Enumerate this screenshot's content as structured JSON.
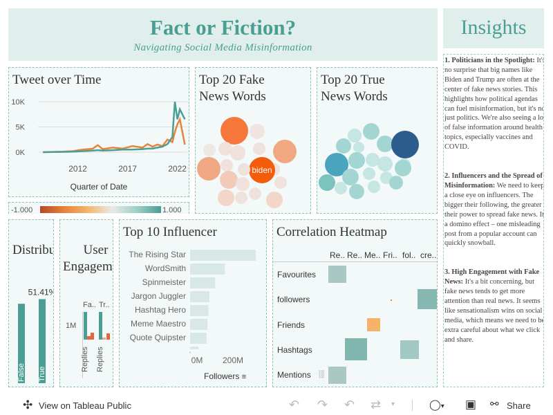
{
  "header": {
    "title": "Fact or Fiction?",
    "subtitle": "Navigating Social Media Misinformation"
  },
  "insights": {
    "title": "Insights",
    "items": [
      {
        "heading": "1. Politicians in the Spotlight:",
        "body": " It's no surprise that big names like Biden and Trump are often at the center of fake news stories. This highlights how political agendas can fuel misinformation, but it's not just politics. We're also seeing a lot of false information around health topics, especially vaccines and COVID."
      },
      {
        "heading": "2. Influencers and the Spread of Misinformation:",
        "body": " We need to keep a close eye on influencers. The bigger their following, the greater their power to spread fake news. It's a domino effect – one misleading post from a popular account can quickly snowball."
      },
      {
        "heading": "3. High Engagement with Fake News:",
        "body": " It's a bit concerning, but fake news tends to get more attention than real news. It seems like sensationalism wins on social media, which means we need to be extra careful about what we click and share."
      }
    ]
  },
  "tweets": {
    "title": "Tweet over Time",
    "xlabel": "Quarter of Date",
    "colors": {
      "fake": "#e8833a",
      "true": "#4a9e94"
    }
  },
  "chart_data": [
    {
      "type": "line",
      "title": "Tweet over Time",
      "xlabel": "Quarter of Date",
      "ylabel": "",
      "ylim": [
        0,
        10000
      ],
      "yticks": [
        "0K",
        "5K",
        "10K"
      ],
      "xticks": [
        "2012",
        "2017",
        "2022"
      ],
      "x": [
        2008.5,
        2009.5,
        2010.5,
        2011.5,
        2012.5,
        2013.5,
        2014,
        2014.5,
        2015.5,
        2016.5,
        2017.5,
        2018.5,
        2019,
        2019.5,
        2020,
        2020.5,
        2021,
        2021.5,
        2021.75,
        2022,
        2022.25,
        2022.5,
        2022.75
      ],
      "series": [
        {
          "name": "Fake",
          "values": [
            0,
            50,
            100,
            200,
            500,
            700,
            1400,
            600,
            900,
            700,
            1200,
            900,
            1600,
            1100,
            1500,
            1200,
            2500,
            2000,
            4000,
            5500,
            6500,
            4000,
            1500
          ]
        },
        {
          "name": "True",
          "values": [
            0,
            30,
            60,
            100,
            200,
            300,
            400,
            300,
            400,
            500,
            500,
            600,
            700,
            700,
            900,
            1100,
            1600,
            3000,
            10000,
            6500,
            8500,
            7500,
            6500
          ]
        }
      ]
    },
    {
      "type": "bar",
      "title": "Distribution",
      "categories": [
        "False",
        "True"
      ],
      "values": [
        48.59,
        51.41
      ],
      "data_labels": [
        "",
        "51.41%"
      ]
    },
    {
      "type": "bar",
      "title": "Top 10 Influencer",
      "categories": [
        "The Rising Star",
        "WordSmith",
        "Spinmeister",
        "Jargon Juggler",
        "Hashtag Hero",
        "Meme Maestro",
        "Quote Quipster"
      ],
      "values": [
        340,
        180,
        130,
        100,
        95,
        90,
        85
      ],
      "xticks": [
        "0M",
        "200M"
      ],
      "xlabel": "Followers"
    },
    {
      "type": "heatmap",
      "title": "Correlation Heatmap",
      "columns": [
        "Re..",
        "Re..",
        "Me..",
        "Fri..",
        "fol..",
        "cre.."
      ],
      "rows": [
        "Favourites",
        "followers",
        "Friends",
        "Hashtags",
        "Mentions"
      ]
    }
  ],
  "legend": {
    "min": "-1.000",
    "max": "1.000"
  },
  "fake_words": {
    "title_line1": "Top 20 Fake",
    "title_line2": "News Words",
    "highlight": "biden"
  },
  "true_words": {
    "title_line1": "Top 20 True",
    "title_line2": "News Words"
  },
  "distribution": {
    "title": "Distribution",
    "value_label": "51.41%",
    "categories": [
      "False",
      "True"
    ]
  },
  "engagement": {
    "title_line1": "User",
    "title_line2": "Engagement",
    "col1": "Fa..",
    "col2": "Tr..",
    "ytick": "1M",
    "bar_label1": "Replies",
    "bar_label2": "Replies"
  },
  "influencers": {
    "title": "Top 10 Influencer",
    "names": [
      "The Rising Star",
      "WordSmith",
      "Spinmeister",
      "Jargon Juggler",
      "Hashtag Hero",
      "Meme Maestro",
      "Quote Quipster"
    ],
    "xticks": [
      "0M",
      "200M"
    ],
    "xlabel": "Followers"
  },
  "heatmap": {
    "title": "Correlation Heatmap",
    "columns": [
      "Re..",
      "Re..",
      "Me..",
      "Fri..",
      "fol..",
      "cre.."
    ],
    "rows": [
      "Favourites",
      "followers",
      "Friends",
      "Hashtags",
      "Mentions"
    ]
  },
  "toolbar": {
    "view_label": "View on Tableau Public",
    "share_label": "Share"
  }
}
